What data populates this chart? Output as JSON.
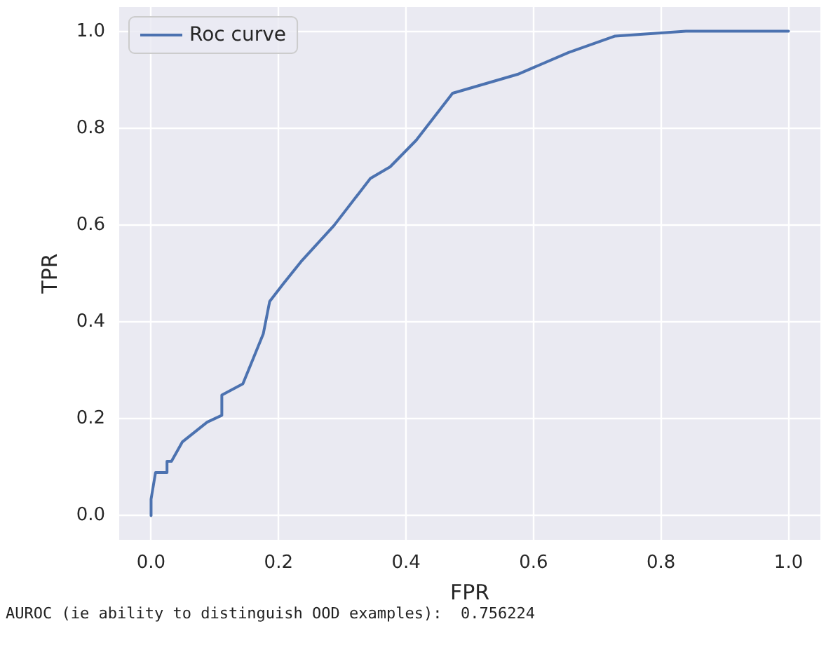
{
  "chart_data": {
    "type": "line",
    "xlabel": "FPR",
    "ylabel": "TPR",
    "series": [
      {
        "name": "Roc curve",
        "color": "#4c72b0",
        "x": [
          0,
          0,
          0.007,
          0.025,
          0.025,
          0.032,
          0.049,
          0.088,
          0.111,
          0.111,
          0.144,
          0.176,
          0.186,
          0.207,
          0.235,
          0.287,
          0.344,
          0.375,
          0.416,
          0.473,
          0.575,
          0.655,
          0.728,
          0.839,
          1.0
        ],
        "values": [
          0,
          0.034,
          0.089,
          0.089,
          0.112,
          0.112,
          0.152,
          0.193,
          0.207,
          0.249,
          0.272,
          0.375,
          0.442,
          0.478,
          0.524,
          0.599,
          0.696,
          0.72,
          0.775,
          0.872,
          0.911,
          0.956,
          0.99,
          1.0,
          1.0
        ]
      }
    ],
    "xlim": [
      -0.05,
      1.05
    ],
    "ylim": [
      -0.05,
      1.05
    ],
    "xticks": [
      {
        "value": 0,
        "label": "0.0"
      },
      {
        "value": 0.2,
        "label": "0.2"
      },
      {
        "value": 0.4,
        "label": "0.4"
      },
      {
        "value": 0.6,
        "label": "0.6"
      },
      {
        "value": 0.8,
        "label": "0.8"
      },
      {
        "value": 1,
        "label": "1.0"
      }
    ],
    "yticks": [
      {
        "value": 0,
        "label": "0.0"
      },
      {
        "value": 0.2,
        "label": "0.2"
      },
      {
        "value": 0.4,
        "label": "0.4"
      },
      {
        "value": 0.6,
        "label": "0.6"
      },
      {
        "value": 0.8,
        "label": "0.8"
      },
      {
        "value": 1,
        "label": "1.0"
      }
    ],
    "grid": true,
    "legend": "top left",
    "marker": "none",
    "line_style": "solid",
    "annotations": [
      "AUROC (ie ability to distinguish OOD examples):  0.756224"
    ]
  }
}
